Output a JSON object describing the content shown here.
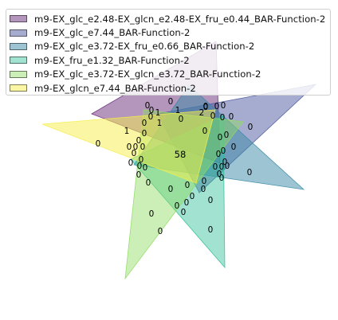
{
  "legend": {
    "items": [
      {
        "label": "m9-EX_glc_e2.48-EX_glcn_e2.48-EX_fru_e0.44_BAR-Function-2",
        "color": "#6a2b7a"
      },
      {
        "label": "m9-EX_glc_e7.44_BAR-Function-2",
        "color": "#4d5aa0"
      },
      {
        "label": "m9-EX_glc_e3.72-EX_fru_e0.66_BAR-Function-2",
        "color": "#3a8aa5"
      },
      {
        "label": "m9-EX_fru_e1.32_BAR-Function-2",
        "color": "#2fbf99"
      },
      {
        "label": "m9-EX_glc_e3.72-EX_glcn_e3.72_BAR-Function-2",
        "color": "#8fdc60"
      },
      {
        "label": "m9-EX_glcn_e7.44_BAR-Function-2",
        "color": "#f5ee4a"
      }
    ]
  },
  "region_counts": [
    {
      "text": "0"
    },
    {
      "text": "0"
    },
    {
      "text": "0"
    },
    {
      "text": "0"
    },
    {
      "text": "0"
    },
    {
      "text": "1"
    },
    {
      "text": "2"
    },
    {
      "text": "0"
    },
    {
      "text": "0"
    },
    {
      "text": "0"
    },
    {
      "text": "1"
    },
    {
      "text": "0"
    },
    {
      "text": "1"
    },
    {
      "text": "0"
    },
    {
      "text": "0"
    },
    {
      "text": "0"
    },
    {
      "text": "0"
    },
    {
      "text": "0"
    },
    {
      "text": "0"
    },
    {
      "text": "0"
    },
    {
      "text": "0"
    },
    {
      "text": "1"
    },
    {
      "text": "0"
    },
    {
      "text": "0"
    },
    {
      "text": "0"
    },
    {
      "text": "0"
    },
    {
      "text": "0"
    },
    {
      "text": "0"
    },
    {
      "text": "0"
    },
    {
      "text": "0"
    },
    {
      "text": "0"
    },
    {
      "text": "0"
    },
    {
      "text": "58"
    },
    {
      "text": "0"
    },
    {
      "text": "0"
    },
    {
      "text": "0"
    },
    {
      "text": "0"
    },
    {
      "text": "0"
    },
    {
      "text": "0"
    },
    {
      "text": "0"
    },
    {
      "text": "0"
    },
    {
      "text": "0"
    },
    {
      "text": "0"
    },
    {
      "text": "0"
    },
    {
      "text": "0"
    },
    {
      "text": "0"
    },
    {
      "text": "0"
    },
    {
      "text": "0"
    },
    {
      "text": "0"
    },
    {
      "text": "0"
    },
    {
      "text": "0"
    },
    {
      "text": "0"
    },
    {
      "text": "0"
    },
    {
      "text": "0"
    },
    {
      "text": "0"
    },
    {
      "text": "0"
    },
    {
      "text": "0"
    },
    {
      "text": "0"
    }
  ]
}
